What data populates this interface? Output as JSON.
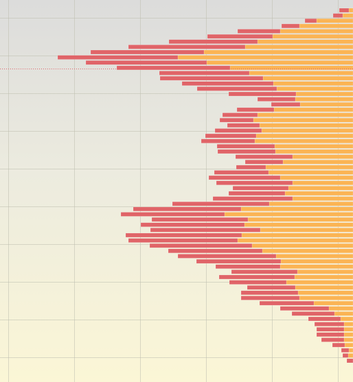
{
  "chart_data": {
    "type": "bar",
    "orientation": "horizontal",
    "stacked": true,
    "xlim": [
      0,
      514
    ],
    "reversed": true,
    "series": [
      {
        "color": "#fbb454",
        "values": [
          6,
          15,
          53,
          78,
          106,
          117,
          139,
          157,
          217,
          255,
          213,
          179,
          151,
          131,
          116,
          111,
          83,
          84,
          77,
          115,
          139,
          145,
          136,
          133,
          141,
          143,
          114,
          113,
          88,
          102,
          127,
          123,
          106,
          88,
          94,
          99,
          88,
          122,
          163,
          187,
          153,
          158,
          135,
          162,
          168,
          147,
          132,
          112,
          105,
          106,
          81,
          85,
          97,
          84,
          80,
          78,
          57,
          35,
          27,
          18,
          13,
          13,
          13,
          13,
          12,
          6,
          7,
          0
        ]
      },
      {
        "color": "#e06468",
        "values": [
          14,
          14,
          17,
          26,
          62,
          95,
          129,
          170,
          165,
          175,
          176,
          165,
          131,
          150,
          133,
          116,
          98,
          55,
          42,
          54,
          51,
          49,
          47,
          68,
          74,
          78,
          84,
          84,
          83,
          55,
          43,
          79,
          104,
          111,
          81,
          82,
          116,
          141,
          157,
          151,
          140,
          151,
          160,
          169,
          159,
          149,
          137,
          143,
          123,
          94,
          96,
          110,
          83,
          70,
          83,
          85,
          79,
          71,
          62,
          47,
          43,
          40,
          40,
          33,
          18,
          11,
          8,
          9
        ]
      }
    ]
  }
}
